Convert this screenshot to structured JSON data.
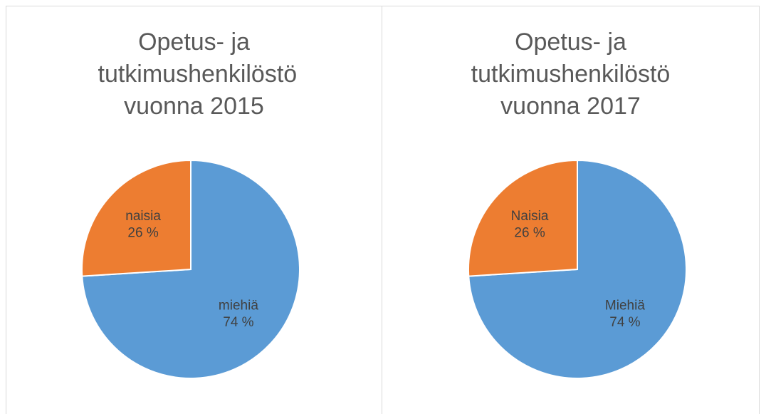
{
  "chart_data": [
    {
      "type": "pie",
      "title": "Opetus- ja tutkimushenkilöstö vuonna 2015",
      "categories": [
        "miehiä",
        "naisia"
      ],
      "values": [
        74,
        26
      ],
      "value_labels": [
        "74 %",
        "26 %"
      ],
      "colors": [
        "#5b9bd5",
        "#ed7d31"
      ]
    },
    {
      "type": "pie",
      "title": "Opetus- ja tutkimushenkilöstö vuonna 2017",
      "categories": [
        "Miehiä",
        "Naisia"
      ],
      "values": [
        74,
        26
      ],
      "value_labels": [
        "74 %",
        "26 %"
      ],
      "colors": [
        "#5b9bd5",
        "#ed7d31"
      ]
    }
  ]
}
